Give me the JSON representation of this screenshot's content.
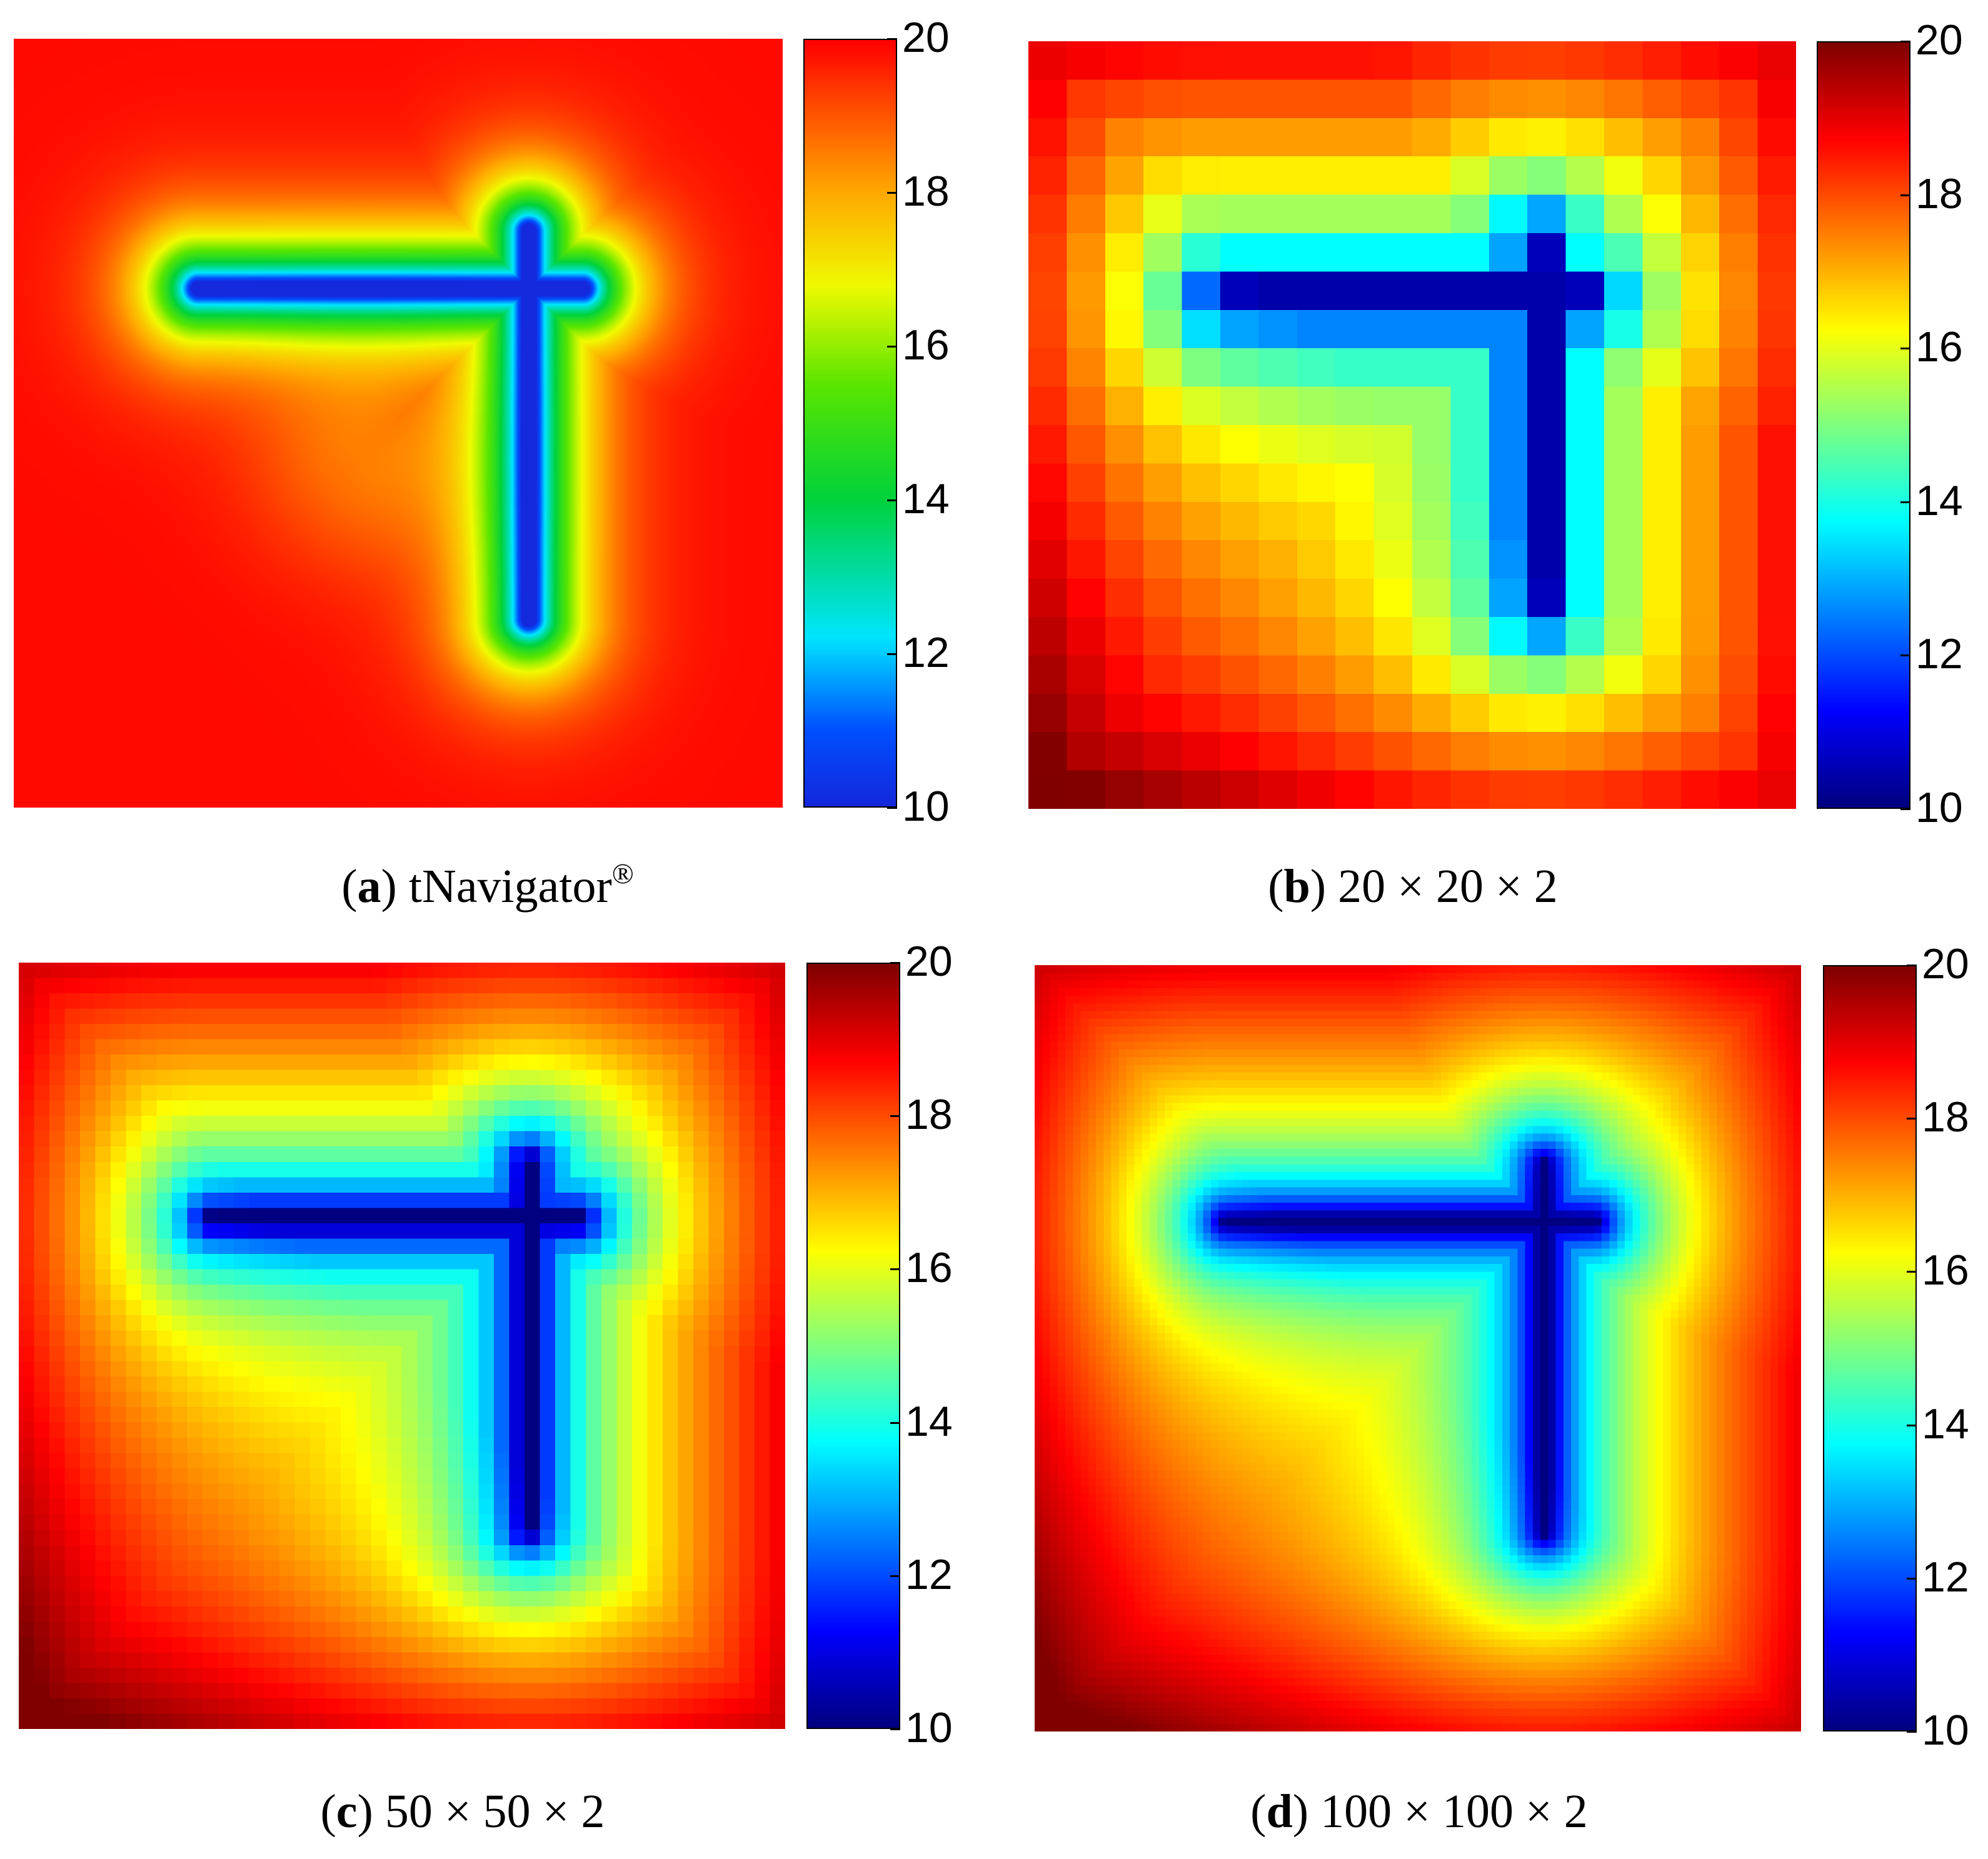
{
  "figure": {
    "panels": [
      {
        "id": "a",
        "caption_letter": "a",
        "caption_text": "tNavigator",
        "caption_sup": "®",
        "colormap": "tnav",
        "grid": 0,
        "chart_data": {
          "type": "heatmap",
          "title": "",
          "colorbar": {
            "range": [
              10,
              20
            ],
            "ticks": [
              "10",
              "12",
              "14",
              "16",
              "18",
              "20"
            ]
          },
          "model": {
            "background": 19.7,
            "horizontal_fracture": {
              "from": [
                0.25,
                0.33
              ],
              "to": [
                0.75,
                0.33
              ],
              "min": 10
            },
            "vertical_fracture": {
              "from": [
                0.67,
                0.25
              ],
              "to": [
                0.67,
                0.75
              ],
              "min": 10
            },
            "lowland_center": [
              0.45,
              0.53
            ]
          }
        }
      },
      {
        "id": "b",
        "caption_letter": "b",
        "caption_text": "20 × 20 × 2",
        "caption_sup": "",
        "colormap": "jet",
        "grid": 20,
        "chart_data": {
          "type": "heatmap",
          "title": "",
          "colorbar": {
            "range": [
              10,
              20
            ],
            "ticks": [
              "10",
              "12",
              "14",
              "16",
              "18",
              "20"
            ]
          },
          "cells": [
            20,
            20
          ]
        }
      },
      {
        "id": "c",
        "caption_letter": "c",
        "caption_text": "50 × 50 × 2",
        "caption_sup": "",
        "colormap": "jet",
        "grid": 50,
        "chart_data": {
          "type": "heatmap",
          "title": "",
          "colorbar": {
            "range": [
              10,
              20
            ],
            "ticks": [
              "10",
              "12",
              "14",
              "16",
              "18",
              "20"
            ]
          },
          "cells": [
            50,
            50
          ]
        }
      },
      {
        "id": "d",
        "caption_letter": "d",
        "caption_text": "100 × 100 × 2",
        "caption_sup": "",
        "colormap": "jet",
        "grid": 100,
        "chart_data": {
          "type": "heatmap",
          "title": "",
          "colorbar": {
            "range": [
              10,
              20
            ],
            "ticks": [
              "10",
              "12",
              "14",
              "16",
              "18",
              "20"
            ]
          },
          "cells": [
            100,
            100
          ]
        }
      }
    ]
  },
  "chart_data": [
    {
      "type": "heatmap",
      "panel": "a",
      "colorbar_range": [
        10,
        20
      ],
      "colorbar_ticks": [
        10,
        12,
        14,
        16,
        18,
        20
      ]
    },
    {
      "type": "heatmap",
      "panel": "b",
      "colorbar_range": [
        10,
        20
      ],
      "colorbar_ticks": [
        10,
        12,
        14,
        16,
        18,
        20
      ],
      "cells": [
        20,
        20
      ]
    },
    {
      "type": "heatmap",
      "panel": "c",
      "colorbar_range": [
        10,
        20
      ],
      "colorbar_ticks": [
        10,
        12,
        14,
        16,
        18,
        20
      ],
      "cells": [
        50,
        50
      ]
    },
    {
      "type": "heatmap",
      "panel": "d",
      "colorbar_range": [
        10,
        20
      ],
      "colorbar_ticks": [
        10,
        12,
        14,
        16,
        18,
        20
      ],
      "cells": [
        100,
        100
      ]
    }
  ]
}
